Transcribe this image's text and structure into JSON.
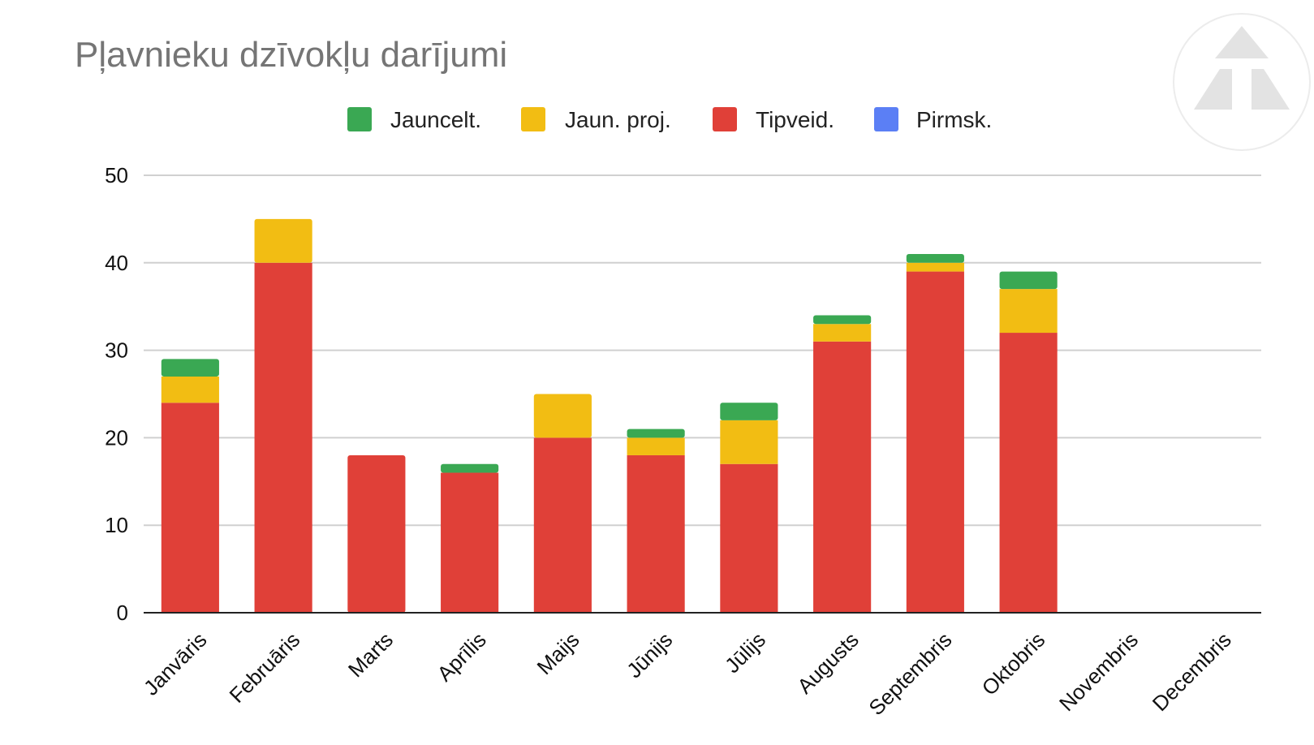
{
  "chart_data": {
    "type": "bar",
    "stacked": true,
    "title": "Pļavnieku dzīvokļu darījumi",
    "xlabel": "",
    "ylabel": "",
    "ylim": [
      0,
      50
    ],
    "yticks": [
      0,
      10,
      20,
      30,
      40,
      50
    ],
    "grid": true,
    "legend_position": "top",
    "categories": [
      "Janvāris",
      "Februāris",
      "Marts",
      "Aprīlis",
      "Maijs",
      "Jūnijs",
      "Jūlijs",
      "Augusts",
      "Septembris",
      "Oktobris",
      "Novembris",
      "Decembris"
    ],
    "series": [
      {
        "name": "Pirmsk.",
        "color": "#5b7ff5",
        "values": [
          0,
          0,
          0,
          0,
          0,
          0,
          0,
          0,
          0,
          0,
          0,
          0
        ]
      },
      {
        "name": "Tipveid.",
        "color": "#e04038",
        "values": [
          24,
          40,
          18,
          16,
          20,
          18,
          17,
          31,
          39,
          32,
          0,
          0
        ]
      },
      {
        "name": "Jaun. proj.",
        "color": "#f2bd13",
        "values": [
          3,
          5,
          0,
          0,
          5,
          2,
          5,
          2,
          1,
          5,
          0,
          0
        ]
      },
      {
        "name": "Jauncelt.",
        "color": "#3aa853",
        "values": [
          2,
          0,
          0,
          1,
          0,
          1,
          2,
          1,
          1,
          2,
          0,
          0
        ]
      }
    ],
    "legend_order": [
      "Jauncelt.",
      "Jaun. proj.",
      "Tipveid.",
      "Pirmsk."
    ]
  },
  "colors": {
    "title": "#757575",
    "grid": "#d0d0d0",
    "axis": "#222222",
    "logo": "#e3e3e3"
  },
  "logo": {
    "icon": "triangle-logo-icon"
  }
}
